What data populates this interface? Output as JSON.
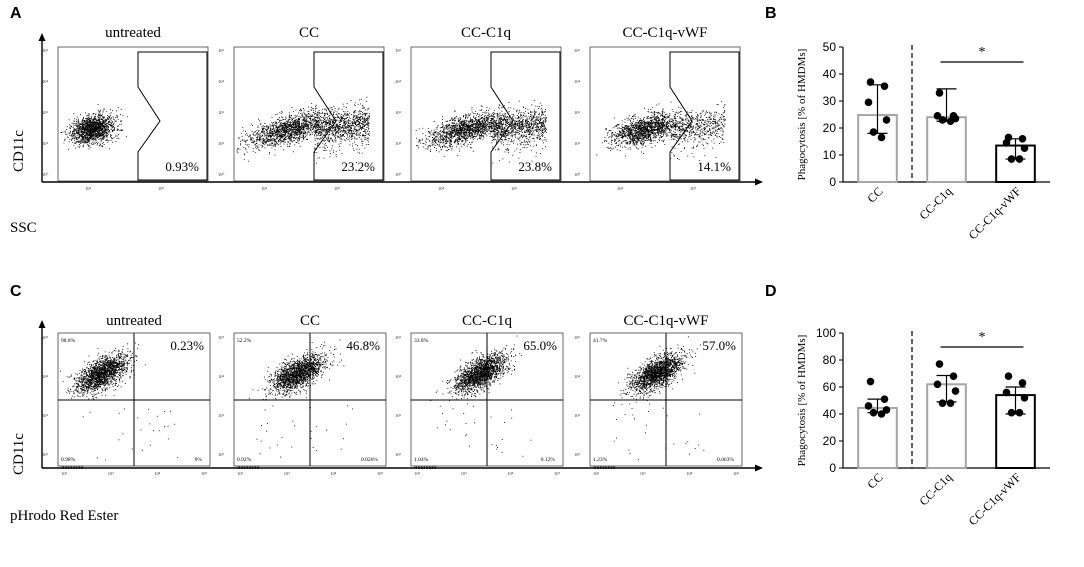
{
  "panels": {
    "A": "A",
    "B": "B",
    "C": "C",
    "D": "D"
  },
  "colors": {
    "ink": "#000000",
    "gray_bar": "#a6a6a6",
    "black_bar": "#000000",
    "frame": "#333333"
  },
  "chart_data": [
    {
      "type": "scatter",
      "panel": "A",
      "row_y_label": "CD11c",
      "row_x_label": "SSC",
      "plots": [
        {
          "title": "untreated",
          "gate_percent": "0.93%",
          "spread": 0.0
        },
        {
          "title": "CC",
          "gate_percent": "23.2%",
          "spread": 1.0
        },
        {
          "title": "CC-C1q",
          "gate_percent": "23.8%",
          "spread": 1.0
        },
        {
          "title": "CC-C1q-vWF",
          "gate_percent": "14.1%",
          "spread": 0.6
        }
      ],
      "tick_labels": {
        "x": [
          "10⁴",
          "10⁵"
        ],
        "y": [
          "10⁵",
          "10⁴",
          "10³",
          "10²",
          "10⁰"
        ]
      }
    },
    {
      "type": "bar",
      "panel": "B",
      "ylabel": "Phagocytosis [% of HMDMs]",
      "categories": [
        "CC",
        "CC-C1q",
        "CC-C1q-vWF"
      ],
      "values": [
        24.8,
        24.0,
        13.5
      ],
      "error": [
        [
          18.0,
          36.0
        ],
        [
          22.5,
          34.5
        ],
        [
          8.5,
          16.0
        ]
      ],
      "points": [
        [
          37,
          35.5,
          29.5,
          23,
          18.5,
          16.5
        ],
        [
          33,
          24.5,
          24.5,
          23.5,
          23,
          22.5
        ],
        [
          16.5,
          16,
          14.5,
          12.5,
          8.5,
          8.5
        ]
      ],
      "bar_colors": [
        "gray",
        "gray",
        "black"
      ],
      "ylim": [
        0,
        50
      ],
      "yticks": [
        0,
        10,
        20,
        30,
        40,
        50
      ],
      "significance": "*"
    },
    {
      "type": "scatter",
      "panel": "C",
      "row_y_label": "CD11c",
      "row_x_label": "pHrodo Red Ester",
      "plots": [
        {
          "title": "untreated",
          "q_upper_left": "98.8%",
          "q_upper_right": "0.23%",
          "q_lower_left": "0.98%",
          "q_lower_right": "0%",
          "shift": 0.0
        },
        {
          "title": "CC",
          "q_upper_left": "52.2%",
          "q_upper_right": "46.8%",
          "q_lower_left": "0.92%",
          "q_lower_right": "0.026%",
          "shift": 0.7
        },
        {
          "title": "CC-C1q",
          "q_upper_left": "33.8%",
          "q_upper_right": "65.0%",
          "q_lower_left": "1.04%",
          "q_lower_right": "0.12%",
          "shift": 0.9
        },
        {
          "title": "CC-C1q-vWF",
          "q_upper_left": "41.7%",
          "q_upper_right": "57.0%",
          "q_lower_left": "1.23%",
          "q_lower_right": "0.063%",
          "shift": 0.8
        }
      ],
      "tick_labels": {
        "x": [
          "10²",
          "10³",
          "10⁴",
          "10⁵"
        ],
        "y": [
          "10⁵",
          "10⁴",
          "10³",
          "10²"
        ]
      }
    },
    {
      "type": "bar",
      "panel": "D",
      "ylabel": "Phagocytosis [% of HMDMs]",
      "categories": [
        "CC",
        "CC-C1q",
        "CC-C1q-vWF"
      ],
      "values": [
        44.5,
        62.0,
        54.0
      ],
      "error": [
        [
          41.0,
          51.0
        ],
        [
          49.0,
          68.5
        ],
        [
          40.0,
          60.0
        ]
      ],
      "points": [
        [
          64,
          51,
          46,
          43,
          41,
          40
        ],
        [
          77,
          68,
          62,
          57,
          48,
          48
        ],
        [
          68,
          63,
          56,
          52,
          41,
          41
        ]
      ],
      "bar_colors": [
        "gray",
        "gray",
        "black"
      ],
      "ylim": [
        0,
        100
      ],
      "yticks": [
        0,
        20,
        40,
        60,
        80,
        100
      ],
      "significance": "*"
    }
  ]
}
